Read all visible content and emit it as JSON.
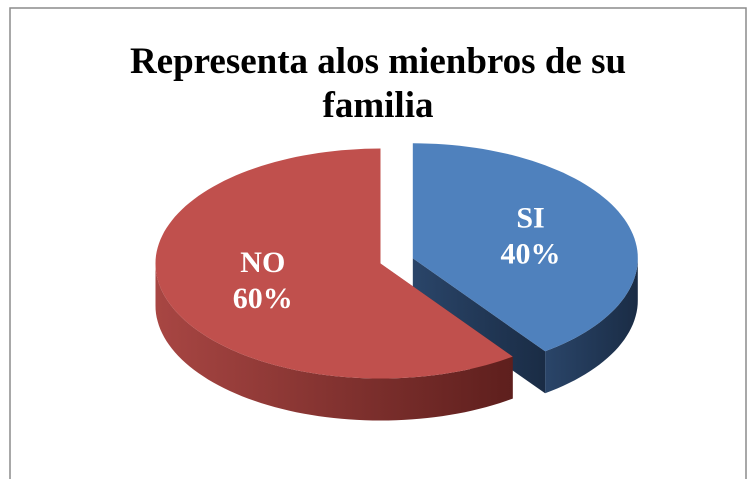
{
  "chart_data": {
    "type": "pie3d",
    "title": "Representa alos mienbros de su familia",
    "categories": [
      "SI",
      "NO"
    ],
    "values": [
      40,
      60
    ],
    "value_labels": [
      "40%",
      "60%"
    ],
    "colors": [
      "#4f81bd",
      "#c0504d"
    ]
  }
}
